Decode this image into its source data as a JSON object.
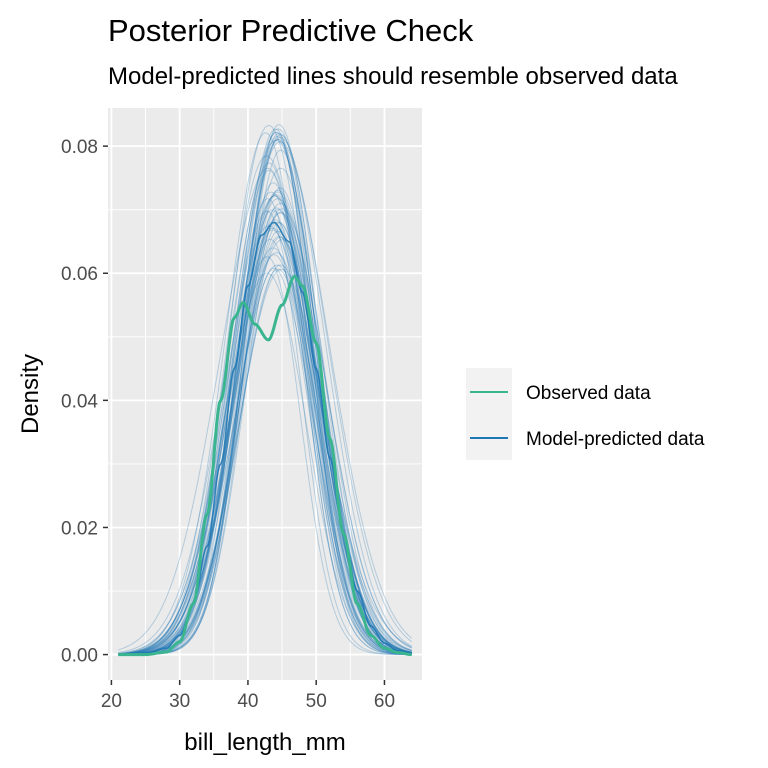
{
  "chart_data": {
    "type": "line",
    "title": "Posterior Predictive Check",
    "subtitle": "Model-predicted lines should resemble observed data",
    "xlabel": "bill_length_mm",
    "ylabel": "Density",
    "xlim": [
      19.5,
      65.5
    ],
    "ylim": [
      -0.004,
      0.086
    ],
    "x_ticks": [
      20,
      30,
      40,
      50,
      60
    ],
    "y_ticks": [
      0.0,
      0.02,
      0.04,
      0.06,
      0.08
    ],
    "x_tick_labels": [
      "20",
      "30",
      "40",
      "50",
      "60"
    ],
    "y_tick_labels": [
      "0.00",
      "0.02",
      "0.04",
      "0.06",
      "0.08"
    ],
    "grid": true,
    "legend_position": "right",
    "colors": {
      "observed": "#3bb58f",
      "predicted": "#1f78b4",
      "panel_background": "#ebebeb",
      "grid": "#ffffff"
    },
    "series": [
      {
        "name": "Observed data",
        "x": [
          21,
          25,
          28,
          30,
          32,
          34,
          36,
          38,
          39.3,
          41,
          43,
          45,
          46.8,
          48,
          50,
          52,
          54,
          56,
          58,
          60,
          62,
          64
        ],
        "values": [
          0.0,
          0.0,
          0.0004,
          0.002,
          0.008,
          0.022,
          0.04,
          0.053,
          0.0554,
          0.052,
          0.0495,
          0.055,
          0.0595,
          0.058,
          0.049,
          0.034,
          0.019,
          0.008,
          0.003,
          0.001,
          0.0003,
          0.0
        ]
      },
      {
        "name": "Model-predicted data",
        "x": [
          21,
          25,
          28,
          30,
          32,
          34,
          36,
          38,
          40,
          42,
          43.8,
          46,
          48,
          50,
          52,
          54,
          56,
          58,
          60,
          62,
          64
        ],
        "values": [
          0.0,
          0.0002,
          0.001,
          0.003,
          0.008,
          0.017,
          0.03,
          0.045,
          0.058,
          0.066,
          0.068,
          0.065,
          0.057,
          0.045,
          0.031,
          0.019,
          0.01,
          0.0045,
          0.0018,
          0.0006,
          0.0002
        ]
      }
    ],
    "predicted_draws": {
      "count": 60,
      "peak_range": [
        0.06,
        0.084
      ],
      "center_range": [
        42.5,
        45.0
      ]
    }
  }
}
